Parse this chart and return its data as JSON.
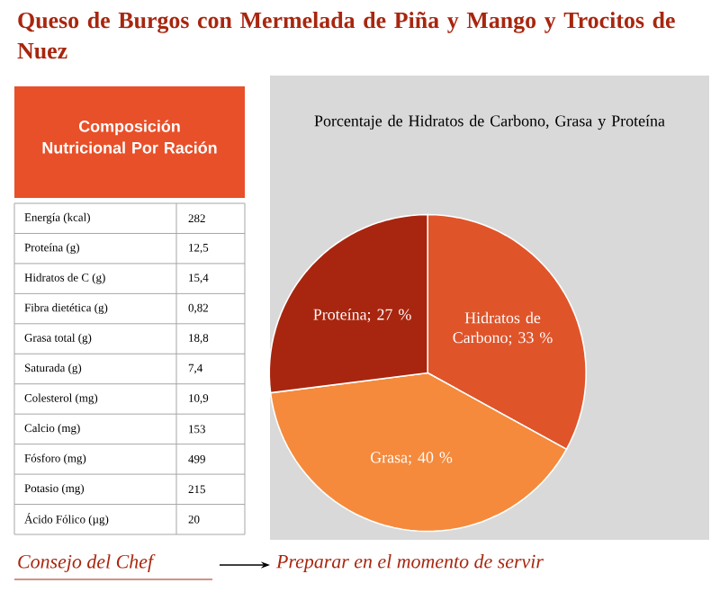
{
  "chart_data": [
    {
      "type": "other",
      "title": "Queso de Burgos con Mermelada de Piña y Mango y Trocitos de Nuez",
      "subtitle": "Composición Nutricional Por Ración",
      "categories": [
        "Energía (kcal)",
        "Proteína (g)",
        "Hidratos de C (g)",
        "Fibra dietética (g)",
        "Grasa total (g)",
        "Saturada (g)",
        "Colesterol (mg)",
        "Calcio (mg)",
        "Fósforo (mg)",
        "Potasio (mg)",
        "Ácido Fólico (µg)"
      ],
      "values": [
        282,
        12.5,
        15.4,
        0.82,
        18.8,
        7.4,
        10.9,
        153,
        499,
        215,
        20
      ],
      "value_labels": [
        "282",
        "12,5",
        "15,4",
        "0,82",
        "18,8",
        "7,4",
        "10,9",
        "153",
        "499",
        "215",
        "20"
      ],
      "annotations": [
        "Consejo del Chef",
        "Preparar en el momento de servir"
      ]
    },
    {
      "type": "pie",
      "title": "Porcentaje de Hidratos de Carbono, Grasa y Proteína",
      "categories": [
        "Hidratos de Carbono",
        "Grasa",
        "Proteína"
      ],
      "values": [
        33,
        40,
        27
      ],
      "value_labels": [
        "; 33 %",
        "; 40 %",
        "; 27 %"
      ],
      "colors": [
        "#e0542a",
        "#f58a3c",
        "#a8260f"
      ],
      "data_labels": true
    }
  ]
}
